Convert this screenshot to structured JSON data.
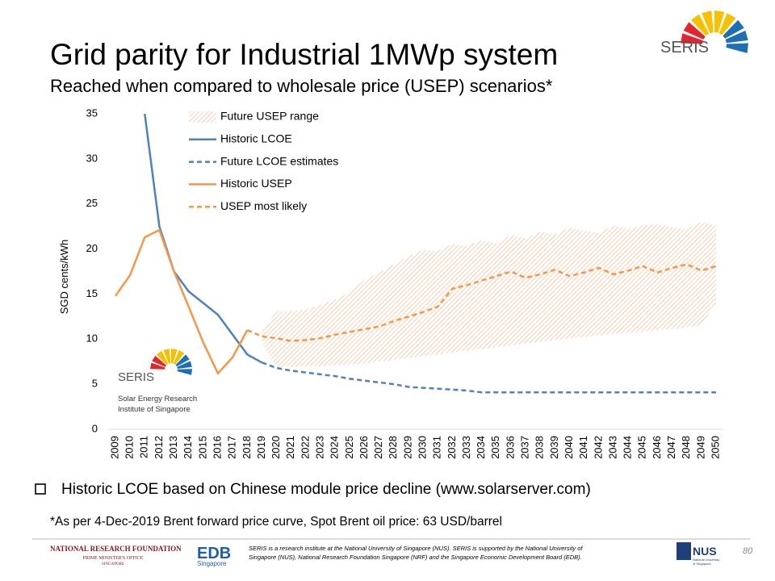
{
  "slide": {
    "bullet": "Historic LCOE based on Chinese module price decline (www.solarserver.com)",
    "footnote": "*As per 4-Dec-2019 Brent forward price curve, Spot Brent oil price: 63 USD/barrel",
    "logo_name": "SERIS",
    "logo_caption": [
      "Solar Energy Research",
      "Institute of Singapore"
    ],
    "nrf": [
      "NATIONAL RESEARCH FOUNDATION",
      "PRIME MINISTER'S OFFICE",
      "SINGAPORE"
    ],
    "edb": [
      "EDB",
      "Singapore"
    ],
    "footer_note": [
      "SERIS is a research institute at the National University of Singapore (NUS). SERIS is supported by the National University of",
      "Singapore (NUS), National Research Foundation Singapore (NRF) and the Singapore Economic Development Board (EDB)."
    ],
    "nus": [
      "NUS",
      "National University",
      "of Singapore"
    ],
    "page_number": "80"
  },
  "chart_data": {
    "type": "line",
    "title": "Grid parity for Industrial 1MWp system",
    "subtitle": "Reached when compared to wholesale price (USEP) scenarios*",
    "y_label": "SGD cents/kWh",
    "categories": [
      "2009",
      "2010",
      "2011",
      "2012",
      "2013",
      "2014",
      "2015",
      "2016",
      "2017",
      "2018",
      "2019",
      "2020",
      "2021",
      "2022",
      "2023",
      "2024",
      "2025",
      "2026",
      "2027",
      "2028",
      "2029",
      "2030",
      "2031",
      "2032",
      "2033",
      "2034",
      "2035",
      "2036",
      "2037",
      "2038",
      "2039",
      "2040",
      "2041",
      "2042",
      "2043",
      "2044",
      "2045",
      "2046",
      "2047",
      "2048",
      "2049",
      "2050"
    ],
    "ylim": [
      0,
      35
    ],
    "yticks": [
      0,
      5,
      10,
      15,
      20,
      25,
      30,
      35
    ],
    "grid": false,
    "series": [
      {
        "name": "Future USEP range",
        "color": "#f4b183",
        "style": "hatched",
        "low": [
          null,
          null,
          null,
          null,
          null,
          null,
          null,
          null,
          null,
          null,
          9.5,
          6.9,
          6.9,
          7.0,
          7.0,
          7.1,
          7.2,
          7.3,
          7.5,
          7.7,
          7.9,
          8.1,
          8.3,
          8.5,
          8.7,
          8.9,
          9.1,
          9.3,
          9.5,
          9.7,
          9.9,
          10.1,
          10.2,
          10.4,
          10.6,
          10.7,
          10.8,
          11.0,
          11.1,
          11.3,
          11.5,
          14.0
        ],
        "high": [
          null,
          null,
          null,
          null,
          null,
          null,
          null,
          null,
          null,
          null,
          11.0,
          13.1,
          13.1,
          13.3,
          13.8,
          14.4,
          15.2,
          16.6,
          17.4,
          18.3,
          19.2,
          19.9,
          19.8,
          20.6,
          20.3,
          21.0,
          20.6,
          21.6,
          21.2,
          21.9,
          21.6,
          22.4,
          22.0,
          21.8,
          22.6,
          22.2,
          22.6,
          22.8,
          22.4,
          22.2,
          23.0,
          22.6
        ]
      },
      {
        "name": "Historic LCOE",
        "color": "#4f81bd",
        "style": "solid",
        "values": [
          null,
          null,
          35,
          22.5,
          17.5,
          15.3,
          14.0,
          12.7,
          10.5,
          8.3,
          7.4,
          null,
          null,
          null,
          null,
          null,
          null,
          null,
          null,
          null,
          null,
          null,
          null,
          null,
          null,
          null,
          null,
          null,
          null,
          null,
          null,
          null,
          null,
          null,
          null,
          null,
          null,
          null,
          null,
          null,
          null,
          null
        ]
      },
      {
        "name": "Future LCOE estimates",
        "color": "#4f81bd",
        "style": "dashed",
        "values": [
          null,
          null,
          null,
          null,
          null,
          null,
          null,
          null,
          null,
          null,
          7.4,
          6.8,
          6.5,
          6.3,
          6.1,
          5.9,
          5.6,
          5.4,
          5.2,
          5.0,
          4.7,
          4.6,
          4.5,
          4.4,
          4.3,
          4.1,
          4.1,
          4.1,
          4.1,
          4.1,
          4.1,
          4.1,
          4.1,
          4.1,
          4.1,
          4.1,
          4.1,
          4.1,
          4.1,
          4.1,
          4.1,
          4.1
        ]
      },
      {
        "name": "Historic USEP",
        "color": "#f79646",
        "style": "solid",
        "values": [
          14.8,
          17.1,
          21.3,
          22.1,
          17.5,
          13.6,
          9.6,
          6.2,
          8.0,
          11.0,
          null,
          null,
          null,
          null,
          null,
          null,
          null,
          null,
          null,
          null,
          null,
          null,
          null,
          null,
          null,
          null,
          null,
          null,
          null,
          null,
          null,
          null,
          null,
          null,
          null,
          null,
          null,
          null,
          null,
          null,
          null,
          null
        ]
      },
      {
        "name": "USEP most likely",
        "color": "#f79646",
        "style": "dashed",
        "values": [
          null,
          null,
          null,
          null,
          null,
          null,
          null,
          null,
          null,
          11.0,
          10.3,
          10.1,
          9.8,
          9.9,
          10.1,
          10.5,
          10.8,
          11.1,
          11.4,
          12.0,
          12.5,
          13.0,
          13.6,
          15.6,
          16.0,
          16.5,
          17.0,
          17.5,
          16.8,
          17.2,
          17.7,
          17.0,
          17.4,
          17.9,
          17.2,
          17.6,
          18.1,
          17.4,
          17.9,
          18.3,
          17.6,
          18.1
        ]
      }
    ]
  }
}
